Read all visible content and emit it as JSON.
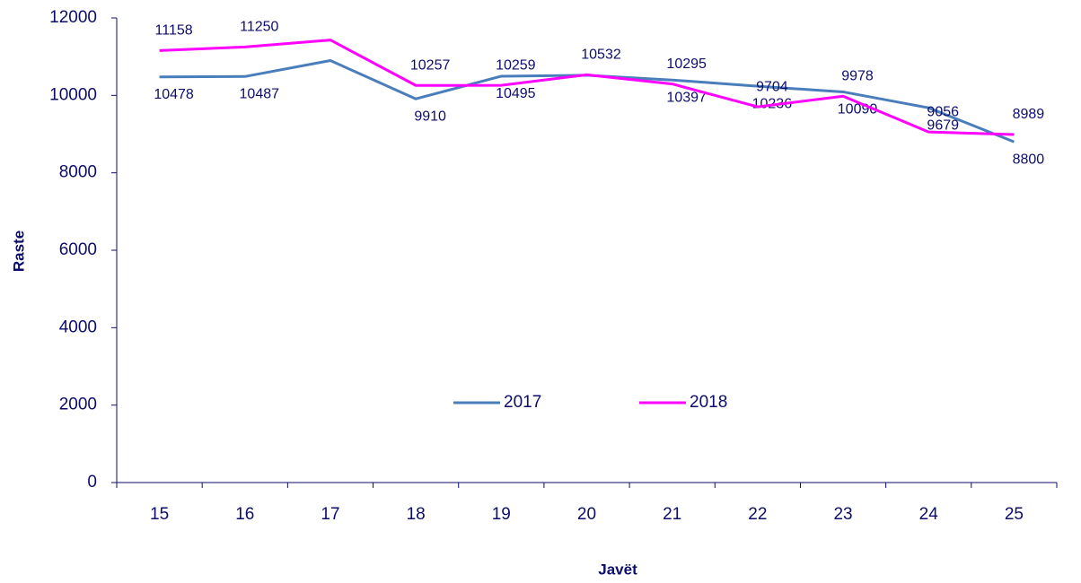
{
  "chart_data": {
    "type": "line",
    "x_label": "Javët",
    "y_label": "Raste",
    "categories": [
      "15",
      "16",
      "17",
      "18",
      "19",
      "20",
      "21",
      "22",
      "23",
      "24",
      "25"
    ],
    "series": [
      {
        "name": "2017",
        "color": "#4a7ebb",
        "values": [
          10478,
          10487,
          10900,
          9910,
          10495,
          10520,
          10397,
          10236,
          10090,
          9679,
          8800
        ],
        "value_labels": [
          "10478",
          "10487",
          null,
          "9910",
          "10495",
          null,
          "10397",
          "10236",
          "10090",
          "9679",
          "8800"
        ]
      },
      {
        "name": "2018",
        "color": "#ff00ff",
        "values": [
          11158,
          11250,
          11430,
          10257,
          10259,
          10532,
          10295,
          9704,
          9978,
          9056,
          8989
        ],
        "value_labels": [
          "11158",
          "11250",
          null,
          "10257",
          "10259",
          "10532",
          "10295",
          "9704",
          "9978",
          "9056",
          "8989"
        ]
      }
    ],
    "ylim": [
      0,
      12000
    ],
    "yticks": [
      0,
      2000,
      4000,
      6000,
      8000,
      10000,
      12000
    ],
    "grid": false,
    "legend": "center"
  }
}
